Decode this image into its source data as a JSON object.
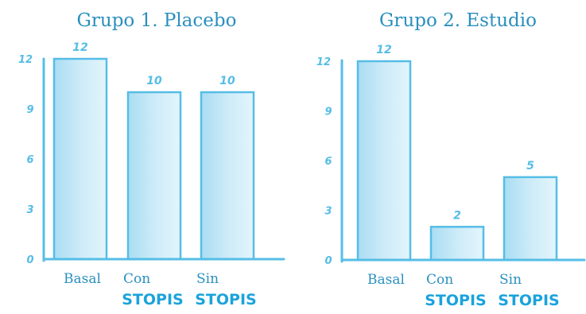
{
  "chart_data": [
    {
      "type": "bar",
      "title": "Grupo 1. Placebo",
      "categories": [
        "Basal",
        "Con",
        "Sin"
      ],
      "category_sublabels": [
        "",
        "STOPIS",
        "STOPIS"
      ],
      "values": [
        12,
        10,
        10
      ],
      "data_labels": [
        "12",
        "10",
        "10"
      ],
      "yticks": [
        "0",
        "3",
        "6",
        "9",
        "12"
      ],
      "ylim": [
        0,
        12
      ],
      "grid": false,
      "colors": {
        "bar_fill_top": "#b7e3f6",
        "bar_fill_bottom": "#d9f1fb",
        "bar_stroke": "#56bde6",
        "axis": "#56bde6"
      }
    },
    {
      "type": "bar",
      "title": "Grupo 2. Estudio",
      "categories": [
        "Basal",
        "Con",
        "Sin"
      ],
      "category_sublabels": [
        "",
        "STOPIS",
        "STOPIS"
      ],
      "values": [
        12,
        2,
        5
      ],
      "data_labels": [
        "12",
        "2",
        "5"
      ],
      "yticks": [
        "0",
        "3",
        "6",
        "9",
        "12"
      ],
      "ylim": [
        0,
        12
      ],
      "grid": false,
      "colors": {
        "bar_fill_top": "#b7e3f6",
        "bar_fill_bottom": "#d9f1fb",
        "bar_stroke": "#56bde6",
        "axis": "#56bde6"
      }
    }
  ]
}
